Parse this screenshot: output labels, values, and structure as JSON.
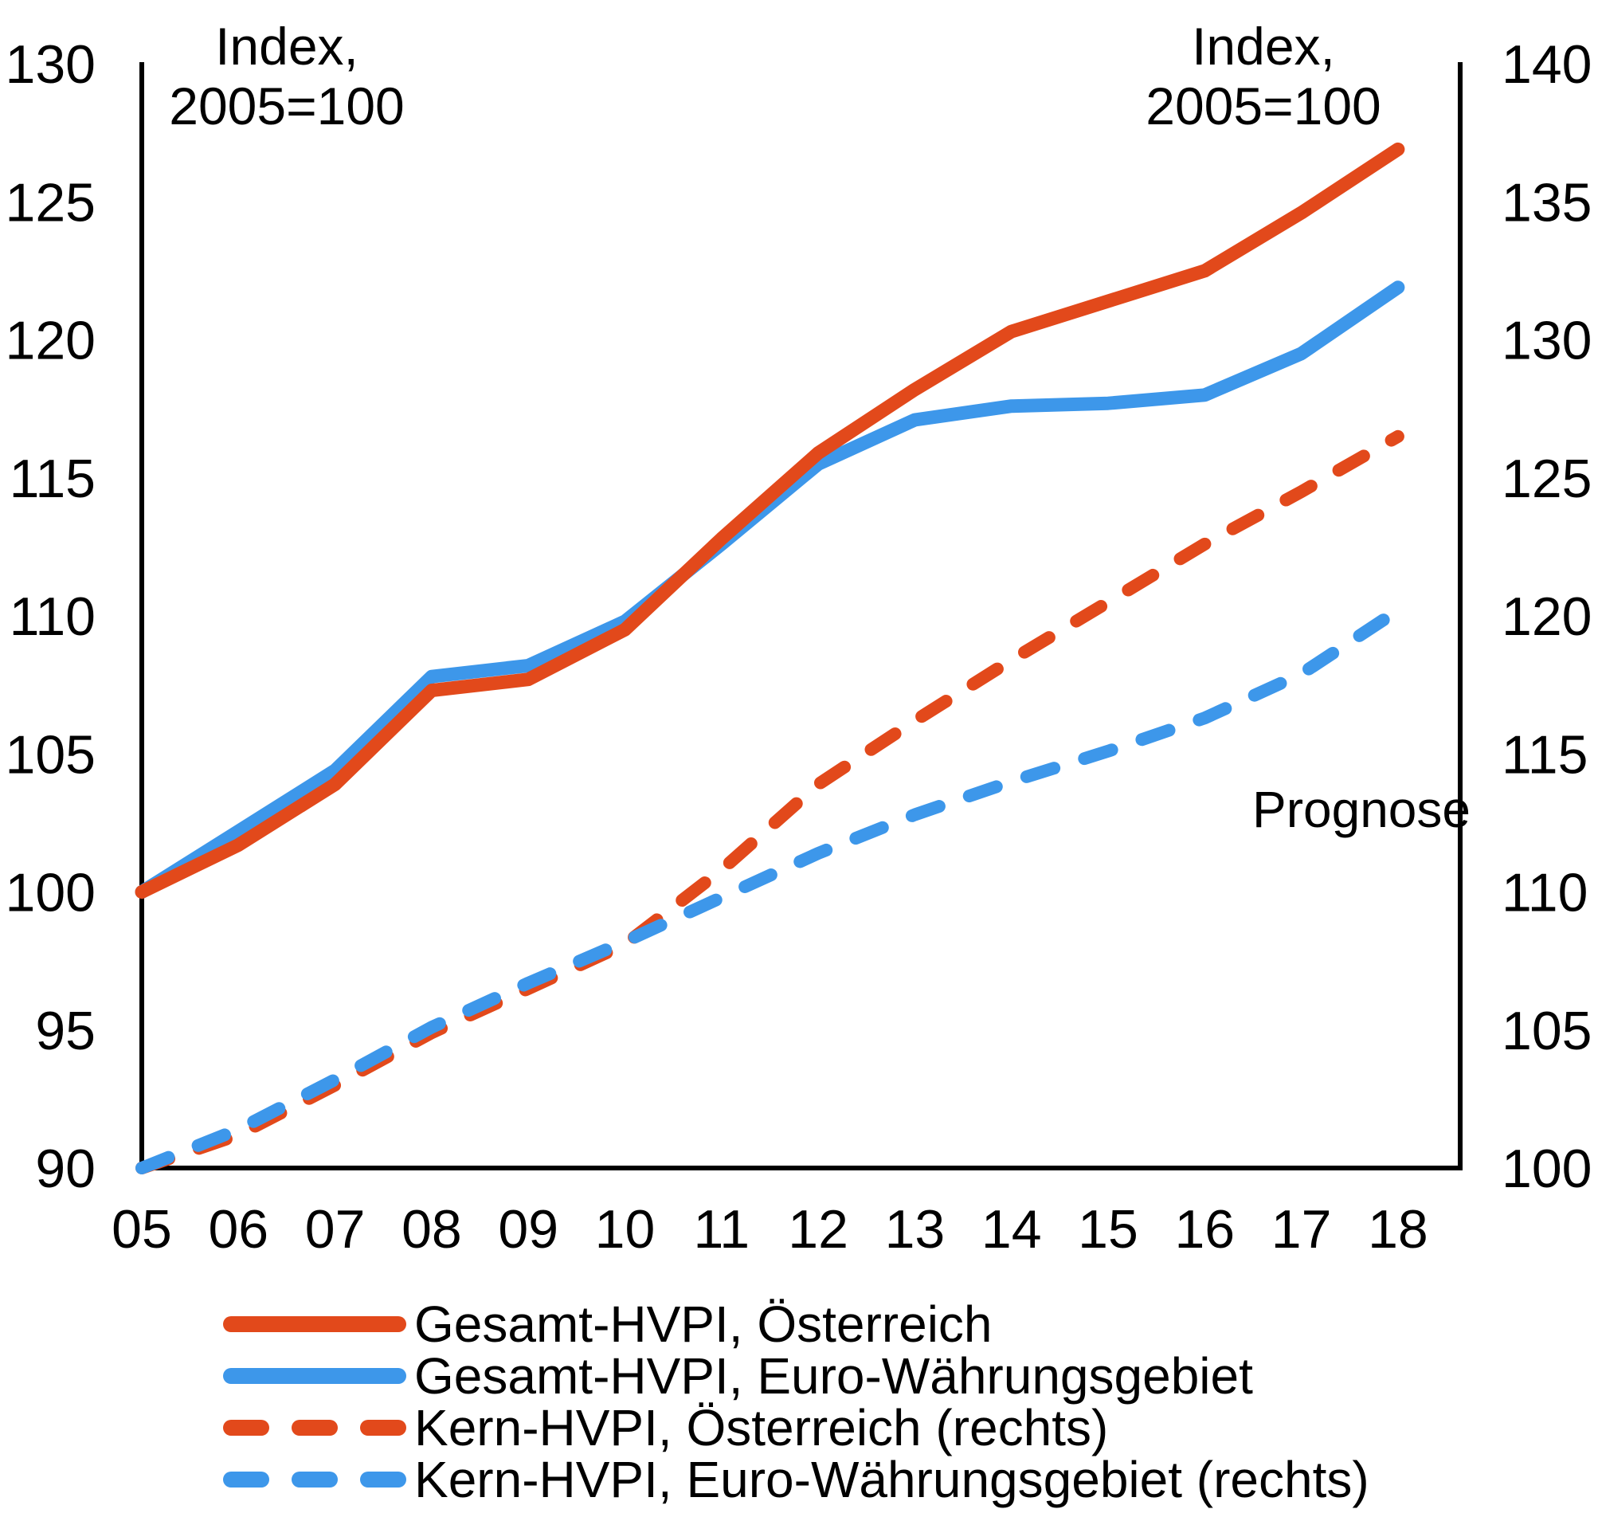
{
  "chart_data": {
    "type": "line",
    "title": "",
    "background_color": "#ffffff",
    "grid": false,
    "x_tick_labels": [
      "05",
      "06",
      "07",
      "08",
      "09",
      "10",
      "11",
      "12",
      "13",
      "14",
      "15",
      "16",
      "17",
      "18"
    ],
    "left_axis": {
      "unit_note_line1": "Index,",
      "unit_note_line2": "2005=100",
      "min": 90,
      "max": 130,
      "step": 5,
      "tick_labels": [
        "130",
        "125",
        "120",
        "115",
        "110",
        "105",
        "100",
        "95",
        "90"
      ]
    },
    "right_axis": {
      "unit_note_line1": "Index,",
      "unit_note_line2": "2005=100",
      "min": 100,
      "max": 140,
      "step": 5,
      "tick_labels": [
        "140",
        "135",
        "130",
        "125",
        "120",
        "115",
        "110",
        "105",
        "100"
      ]
    },
    "annotation": {
      "label": "Prognose",
      "x_year_position": 16.42,
      "line_color": "#3B4478"
    },
    "colors": {
      "austria_orange": "#E2491B",
      "euro_area_blue": "#3D97EA",
      "axis_black": "#000000",
      "forecast_navy": "#3B4478"
    },
    "series": [
      {
        "id": "gesamt-hvpi-oesterreich",
        "name": "Gesamt-HVPI, Österreich",
        "axis": "left",
        "style": "solid",
        "color": "#E2491B",
        "values": [
          100.0,
          101.7,
          103.9,
          107.3,
          107.7,
          109.5,
          112.8,
          115.9,
          118.2,
          120.3,
          121.4,
          122.5,
          124.6,
          126.9
        ]
      },
      {
        "id": "gesamt-hvpi-euro-waehrungsgebiet",
        "name": "Gesamt-HVPI, Euro-Währungsgebiet",
        "axis": "left",
        "style": "solid",
        "color": "#3D97EA",
        "values": [
          100.0,
          102.2,
          104.4,
          107.8,
          108.2,
          109.8,
          112.6,
          115.5,
          117.1,
          117.6,
          117.7,
          118.0,
          119.5,
          121.9
        ]
      },
      {
        "id": "kern-hvpi-oesterreich",
        "name": "Kern-HVPI, Österreich (rechts)",
        "axis": "right",
        "style": "dashed",
        "color": "#E2491B",
        "values": [
          100.0,
          101.2,
          103.0,
          104.9,
          106.5,
          108.1,
          110.8,
          113.9,
          116.2,
          118.4,
          120.5,
          122.6,
          124.5,
          126.5
        ]
      },
      {
        "id": "kern-hvpi-euro-waehrungsgebiet",
        "name": "Kern-HVPI, Euro-Währungsgebiet (rechts)",
        "axis": "right",
        "style": "dashed",
        "color": "#3D97EA",
        "values": [
          100.0,
          101.4,
          103.2,
          105.1,
          106.7,
          108.2,
          109.8,
          111.4,
          112.8,
          114.0,
          115.1,
          116.3,
          117.9,
          120.2
        ]
      }
    ]
  }
}
